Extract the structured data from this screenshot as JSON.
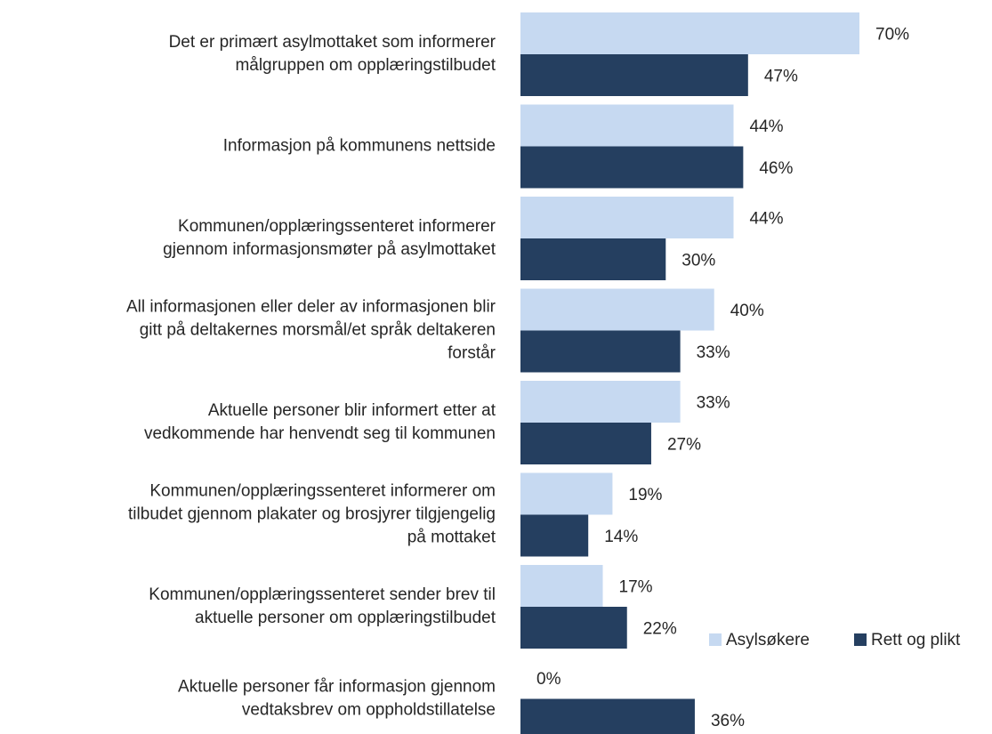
{
  "chart_data": {
    "type": "bar",
    "orientation": "horizontal",
    "categories": [
      [
        "Det er primært asylmottaket som informerer",
        "målgruppen om opplæringstilbudet"
      ],
      [
        "Informasjon på kommunens nettside"
      ],
      [
        "Kommunen/opplæringssenteret informerer",
        "gjennom informasjonsmøter på asylmottaket"
      ],
      [
        "All informasjonen eller deler av informasjonen blir",
        "gitt på deltakernes morsmål/et språk deltakeren",
        "forstår"
      ],
      [
        "Aktuelle personer blir informert etter at",
        "vedkommende har henvendt seg til kommunen"
      ],
      [
        "Kommunen/opplæringssenteret informerer om",
        "tilbudet gjennom plakater og brosjyrer tilgjengelig",
        "på mottaket"
      ],
      [
        "Kommunen/opplæringssenteret sender brev til",
        "aktuelle personer om opplæringstilbudet"
      ],
      [
        "Aktuelle personer får informasjon gjennom",
        "vedtaksbrev om oppholdstillatelse"
      ]
    ],
    "series": [
      {
        "name": "Asylsøkere",
        "color": "#c6d9f1",
        "values": [
          70,
          44,
          44,
          40,
          33,
          19,
          17,
          0
        ],
        "value_labels": [
          "70%",
          "44%",
          "44%",
          "40%",
          "33%",
          "19%",
          "17%",
          "0%"
        ]
      },
      {
        "name": "Rett og plikt",
        "color": "#253f60",
        "values": [
          47,
          46,
          30,
          33,
          27,
          14,
          22,
          36
        ],
        "value_labels": [
          "47%",
          "46%",
          "30%",
          "33%",
          "27%",
          "14%",
          "22%",
          "36%"
        ]
      }
    ],
    "xlim": [
      0,
      70
    ],
    "legend": "bottom-right"
  }
}
